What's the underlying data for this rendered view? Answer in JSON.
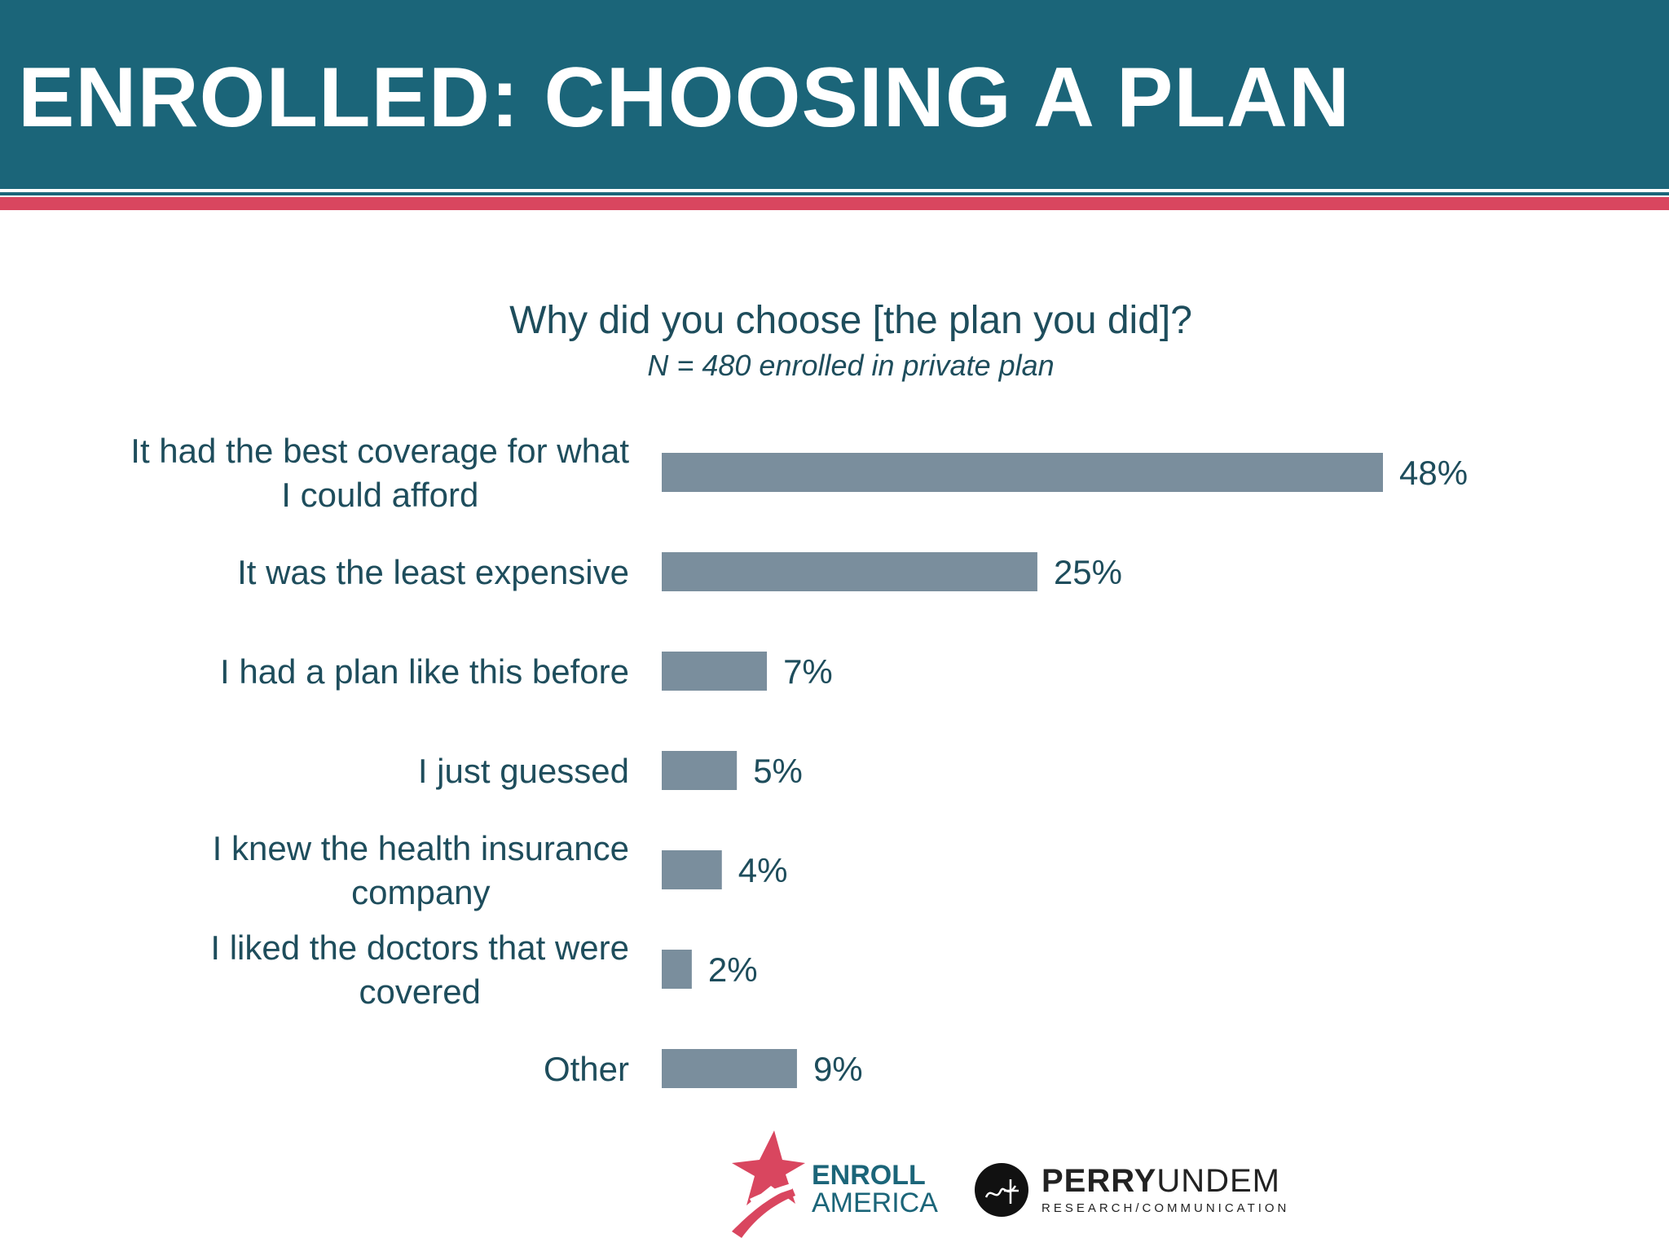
{
  "header": {
    "title": "ENROLLED: CHOOSING A PLAN",
    "bg_color": "#1b6579",
    "accent_stripe_color": "#d9465f"
  },
  "chart_data": {
    "type": "bar",
    "orientation": "horizontal",
    "title": "Why did you choose [the plan you did]?",
    "subtitle": "N = 480 enrolled in private plan",
    "categories": [
      [
        "It had the best coverage for what",
        "I could afford"
      ],
      [
        "It was the least expensive"
      ],
      [
        "I had a plan like this before"
      ],
      [
        "I just guessed"
      ],
      [
        "I knew the health insurance",
        "company"
      ],
      [
        "I liked the doctors that were",
        "covered"
      ],
      [
        "Other"
      ]
    ],
    "values": [
      48,
      25,
      7,
      5,
      4,
      2,
      9
    ],
    "value_labels": [
      "48%",
      "25%",
      "7%",
      "5%",
      "4%",
      "2%",
      "9%"
    ],
    "xlim": [
      0,
      48
    ],
    "grid": false,
    "bar_color": "#7a8e9d"
  },
  "footer": {
    "logo1_icon": "star-swoosh-icon",
    "logo1_line1": "ENROLL",
    "logo1_line2": "AMERICA",
    "logo2_icon": "pu-circle-icon",
    "logo2_main_bold": "PERRY",
    "logo2_main_light": "UNDEM",
    "logo2_sub": "RESEARCH/COMMUNICATION"
  }
}
